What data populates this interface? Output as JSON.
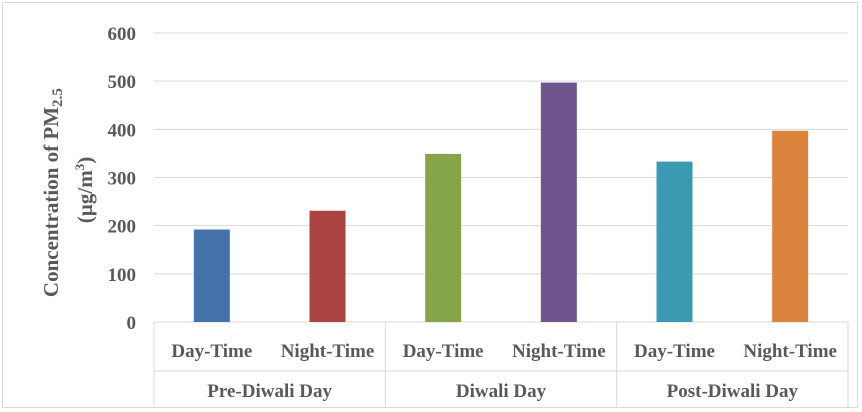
{
  "chart_data": {
    "type": "bar",
    "ylabel_line1": "Concentration of PM",
    "ylabel_sub": "2.5",
    "ylabel_line2": "(µg/m",
    "ylabel_sup": "3",
    "ylabel_line2_end": ")",
    "ylim": [
      0,
      600
    ],
    "yticks": [
      0,
      100,
      200,
      300,
      400,
      500,
      600
    ],
    "grid": true,
    "groups": [
      {
        "label": "Pre-Diwali Day",
        "bars": [
          {
            "category": "Day-Time",
            "value": 192,
            "color": "#4472a8"
          },
          {
            "category": "Night-Time",
            "value": 231,
            "color": "#a94442"
          }
        ]
      },
      {
        "label": "Diwali Day",
        "bars": [
          {
            "category": "Day-Time",
            "value": 349,
            "color": "#86a44a"
          },
          {
            "category": "Night-Time",
            "value": 497,
            "color": "#6e548d"
          }
        ]
      },
      {
        "label": "Post-Diwali Day",
        "bars": [
          {
            "category": "Day-Time",
            "value": 333,
            "color": "#3b9ab2"
          },
          {
            "category": "Night-Time",
            "value": 397,
            "color": "#db843d"
          }
        ]
      }
    ]
  }
}
